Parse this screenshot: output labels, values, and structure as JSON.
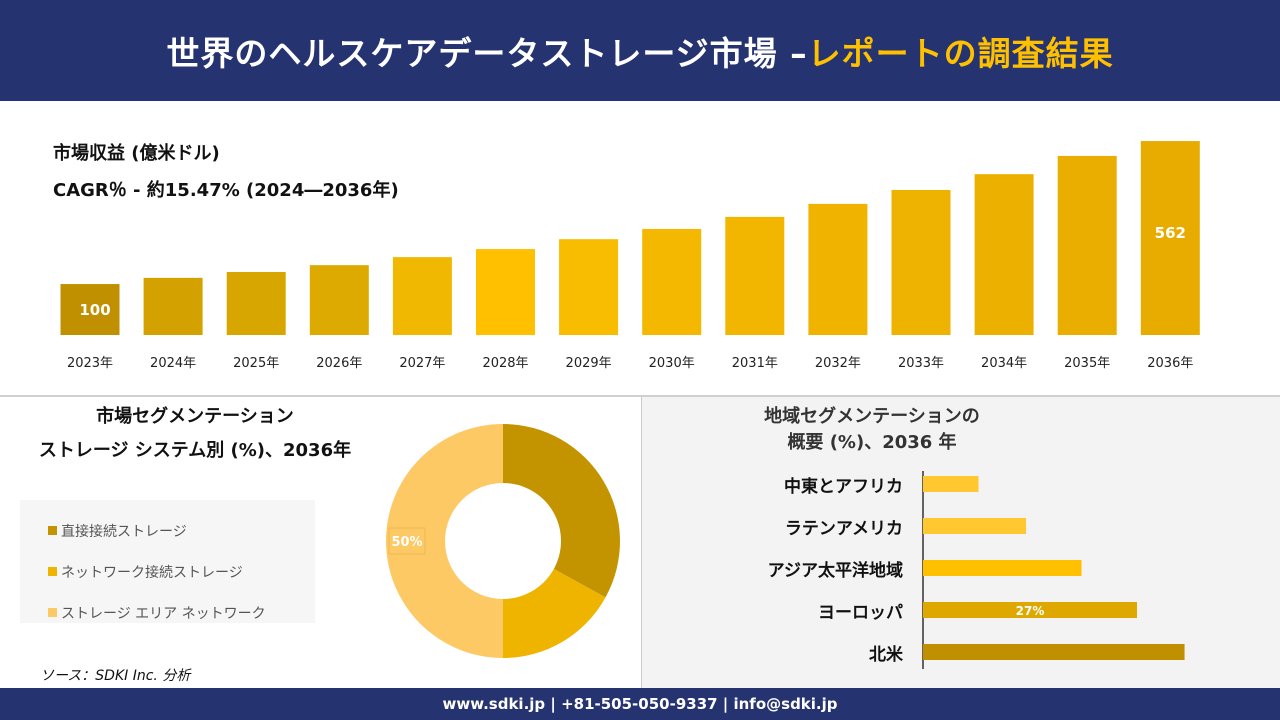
{
  "header": {
    "title_main": "世界のヘルスケアデータストレージ市場 –",
    "title_accent": "レポートの調査結果"
  },
  "revenue": {
    "label": "市場収益 (億米ドル)",
    "cagr": "CAGR％ - 約15.47% (2024―2036年)"
  },
  "chart_data": [
    {
      "type": "bar",
      "title": "市場収益 (億米ドル)",
      "subtitle": "CAGR％ - 約15.47% (2024―2036年)",
      "categories": [
        "2023年",
        "2024年",
        "2025年",
        "2026年",
        "2027年",
        "2028年",
        "2029年",
        "2030年",
        "2031年",
        "2032年",
        "2033年",
        "2034年",
        "2035年",
        "2036年"
      ],
      "values": [
        100,
        120,
        139,
        161,
        187,
        213,
        245,
        278,
        317,
        359,
        404,
        455,
        514,
        562
      ],
      "data_labels": {
        "0": "100",
        "13": "562"
      },
      "colors": [
        "#c09000",
        "#d4a200",
        "#d8a600",
        "#dcaa00",
        "#f0b800",
        "#ffc000",
        "#f8bc00",
        "#f4b800",
        "#f2b600",
        "#f0b400",
        "#eeb200",
        "#ecb000",
        "#eaae00",
        "#e8ac00"
      ]
    },
    {
      "type": "pie",
      "variant": "donut",
      "title": "市場セグメンテーション\nストレージ システム別 (%)、2036年",
      "title_lines": [
        "市場セグメンテーション",
        "ストレージ システム別 (%)、2036年"
      ],
      "categories": [
        "直接接続ストレージ",
        "ネットワーク接続ストレージ",
        "ストレージ エリア ネットワーク"
      ],
      "values": [
        33,
        17,
        50
      ],
      "data_labels": {
        "2": "50%"
      },
      "colors": [
        "#c39400",
        "#eeb400",
        "#fdc964"
      ],
      "legend": "left"
    },
    {
      "type": "bar",
      "orientation": "horizontal",
      "title_lines": [
        "地域セグメンテーションの",
        "概要 (%)、2036 年"
      ],
      "categories": [
        "中東とアフリカ",
        "ラテンアメリカ",
        "アジア太平洋地域",
        "ヨーロッパ",
        "北米"
      ],
      "values": [
        7,
        13,
        20,
        27,
        33
      ],
      "data_labels": {
        "3": "27%"
      },
      "colors": [
        "#ffc830",
        "#ffc830",
        "#ffc000",
        "#dfa800",
        "#c09000"
      ]
    }
  ],
  "source": "ソース：SDKI Inc. 分析",
  "footer": "www.sdki.jp | +81-505-050-9337 | info@sdki.jp"
}
